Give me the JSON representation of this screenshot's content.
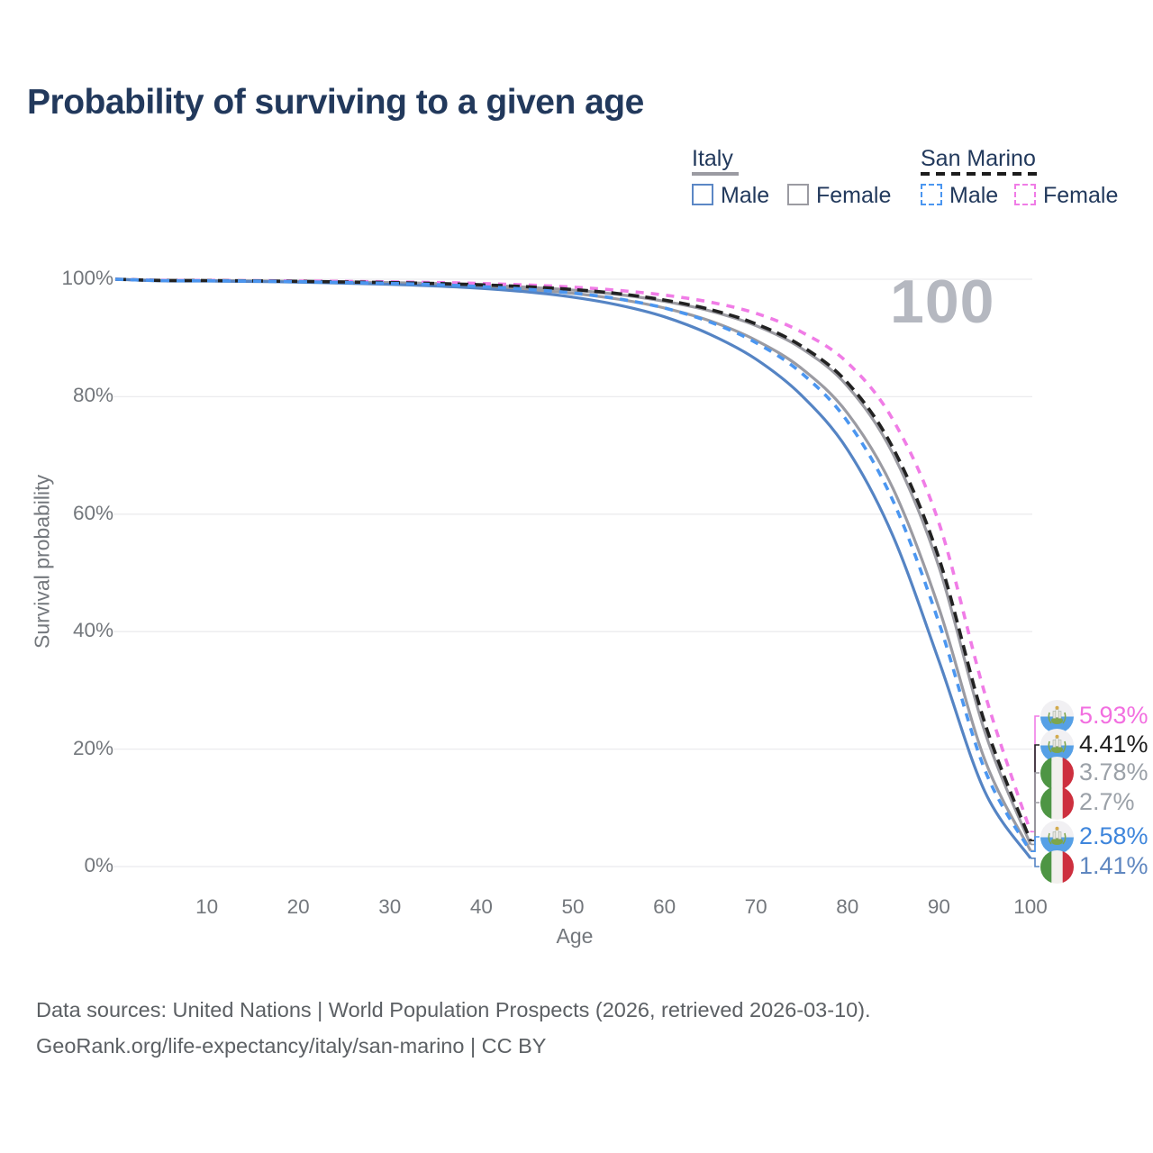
{
  "page": {
    "title": "Probability of surviving to a given age",
    "watermark": "100",
    "footer_line1": "Data sources: United Nations | World Population Prospects (2026, retrieved 2026-03-10).",
    "footer_line2": "GeoRank.org/life-expectancy/italy/san-marino | CC BY"
  },
  "legend": {
    "groups": [
      {
        "label": "Italy",
        "underline_style": "solid",
        "underline_color": "#9b9ba2",
        "items": [
          {
            "label": "Male",
            "box_color": "#5b87c5",
            "box_style": "solid"
          },
          {
            "label": "Female",
            "box_color": "#9b9ba2",
            "box_style": "solid"
          }
        ]
      },
      {
        "label": "San Marino",
        "underline_style": "dashed",
        "underline_color": "#1c1c1c",
        "items": [
          {
            "label": "Male",
            "box_color": "#4b96f0",
            "box_style": "dashed"
          },
          {
            "label": "Female",
            "box_color": "#f07ce6",
            "box_style": "dashed"
          }
        ]
      }
    ]
  },
  "chart_data": {
    "type": "line",
    "title": "Probability of surviving to a given age",
    "xlabel": "Age",
    "ylabel": "Survival probability",
    "xlim": [
      0,
      100
    ],
    "ylim": [
      0,
      100
    ],
    "grid": "horizontal",
    "x_ticks": [
      10,
      20,
      30,
      40,
      50,
      60,
      70,
      80,
      90,
      100
    ],
    "y_ticks": [
      0,
      20,
      40,
      60,
      80,
      100
    ],
    "y_tick_suffix": "%",
    "legend_position": "top-right",
    "ages": [
      0,
      5,
      10,
      15,
      20,
      25,
      30,
      35,
      40,
      45,
      50,
      55,
      60,
      65,
      70,
      75,
      80,
      85,
      90,
      95,
      100
    ],
    "series": [
      {
        "name": "San Marino Female",
        "country": "san-marino",
        "sex": "female",
        "color": "#f07ce6",
        "label_color": "#f26fe0",
        "dash": true,
        "end_label": "5.93%",
        "end_value": 5.93,
        "values": [
          100,
          99.82,
          99.8,
          99.76,
          99.7,
          99.63,
          99.55,
          99.44,
          99.28,
          99.02,
          98.65,
          98.1,
          97.3,
          96.1,
          94.2,
          91.0,
          85.8,
          76.0,
          58.5,
          29.5,
          5.93
        ]
      },
      {
        "name": "San Marino Total",
        "country": "san-marino",
        "sex": "total",
        "color": "#222222",
        "label_color": "#1f1f1f",
        "dash": true,
        "end_label": "4.41%",
        "end_value": 4.41,
        "values": [
          100,
          99.8,
          99.77,
          99.72,
          99.64,
          99.54,
          99.43,
          99.28,
          99.05,
          98.72,
          98.25,
          97.55,
          96.45,
          94.85,
          92.4,
          88.6,
          82.4,
          71.2,
          52.5,
          24.5,
          4.41
        ]
      },
      {
        "name": "Italy Female",
        "country": "italy",
        "sex": "female",
        "color": "#9b9ba2",
        "label_color": "#9ba1a8",
        "dash": false,
        "end_label": "3.78%",
        "end_value": 3.78,
        "values": [
          100,
          99.79,
          99.76,
          99.71,
          99.64,
          99.55,
          99.44,
          99.28,
          99.02,
          98.65,
          98.15,
          97.4,
          96.25,
          94.6,
          92.1,
          88.2,
          81.8,
          70.2,
          51.0,
          23.0,
          3.78
        ]
      },
      {
        "name": "Italy Total",
        "country": "italy",
        "sex": "total",
        "color": "#9b9ba2",
        "label_color": "#9ba1a8",
        "dash": false,
        "end_label": "2.7%",
        "end_value": 2.7,
        "values": [
          100,
          99.75,
          99.72,
          99.66,
          99.57,
          99.44,
          99.28,
          99.06,
          98.72,
          98.25,
          97.6,
          96.6,
          95.1,
          92.9,
          89.6,
          84.8,
          77.2,
          64.3,
          44.0,
          18.2,
          2.7
        ]
      },
      {
        "name": "San Marino Male",
        "country": "san-marino",
        "sex": "male",
        "color": "#4b96f0",
        "label_color": "#3f86dc",
        "dash": true,
        "end_label": "2.58%",
        "end_value": 2.58,
        "values": [
          100,
          99.77,
          99.74,
          99.68,
          99.58,
          99.45,
          99.3,
          99.08,
          98.74,
          98.28,
          97.65,
          96.65,
          95.1,
          92.7,
          89.2,
          84.0,
          75.8,
          62.2,
          41.5,
          16.5,
          2.58
        ]
      },
      {
        "name": "Italy Male",
        "country": "italy",
        "sex": "male",
        "color": "#5584c4",
        "label_color": "#5f87c0",
        "dash": false,
        "end_label": "1.41%",
        "end_value": 1.41,
        "values": [
          100,
          99.72,
          99.69,
          99.62,
          99.5,
          99.33,
          99.12,
          98.85,
          98.45,
          97.85,
          96.95,
          95.6,
          93.6,
          90.6,
          86.4,
          80.2,
          71.0,
          56.2,
          35.0,
          12.8,
          1.41
        ]
      }
    ]
  }
}
